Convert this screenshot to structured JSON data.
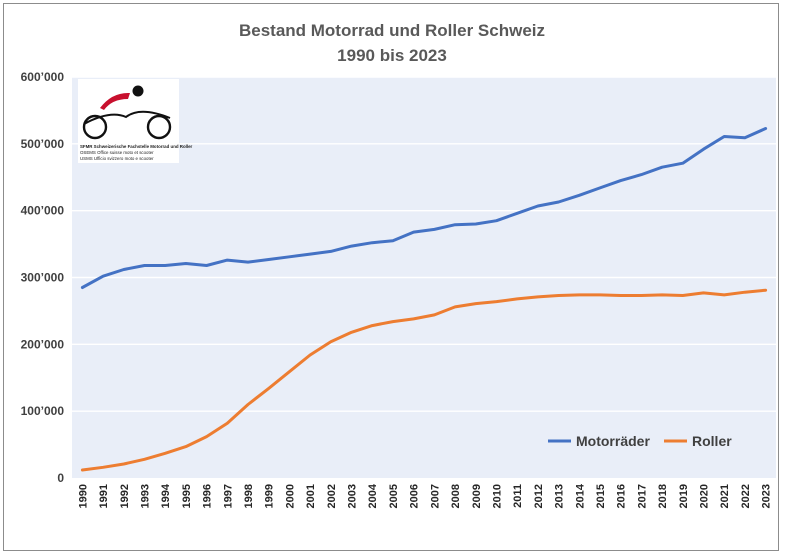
{
  "chart_data": {
    "type": "line",
    "title_line1": "Bestand Motorrad und Roller Schweiz",
    "title_line2": "1990 bis 2023",
    "xlabel": "",
    "ylabel": "",
    "ylim": [
      0,
      600000
    ],
    "yticks": [
      0,
      100000,
      200000,
      300000,
      400000,
      500000,
      600000
    ],
    "ytick_labels": [
      "0",
      "100’000",
      "200’000",
      "300’000",
      "400’000",
      "500’000",
      "600’000"
    ],
    "grid": true,
    "legend_position": "bottom-right",
    "x": [
      "1990",
      "1991",
      "1992",
      "1993",
      "1994",
      "1995",
      "1996",
      "1997",
      "1998",
      "1999",
      "2000",
      "2001",
      "2002",
      "2003",
      "2004",
      "2005",
      "2006",
      "2007",
      "2008",
      "2009",
      "2010",
      "2011",
      "2012",
      "2013",
      "2014",
      "2015",
      "2016",
      "2017",
      "2018",
      "2019",
      "2020",
      "2021",
      "2022",
      "2023"
    ],
    "series": [
      {
        "name": "Motorräder",
        "color": "#4472c4",
        "values": [
          285000,
          302000,
          312000,
          318000,
          318000,
          321000,
          318000,
          326000,
          323000,
          327000,
          331000,
          335000,
          339000,
          347000,
          352000,
          355000,
          368000,
          372000,
          379000,
          380000,
          385000,
          396000,
          407000,
          413000,
          423000,
          434000,
          445000,
          454000,
          465000,
          471000,
          492000,
          511000,
          509000,
          523000
        ]
      },
      {
        "name": "Roller",
        "color": "#ed7d31",
        "values": [
          12000,
          16000,
          21000,
          28000,
          37000,
          47000,
          62000,
          82000,
          110000,
          134000,
          159000,
          184000,
          204000,
          218000,
          228000,
          234000,
          238000,
          244000,
          256000,
          261000,
          264000,
          268000,
          271000,
          273000,
          274000,
          274000,
          273000,
          273000,
          274000,
          273000,
          277000,
          274000,
          278000,
          281000
        ]
      }
    ]
  },
  "logo": {
    "line1": "SFMR  Schweizerische Fachstelle Motorrad und Roller",
    "line2": "OSEMS  Office suisse moto et scooter",
    "line3": "USMS  Ufficio svizzero moto e scooter"
  },
  "colors": {
    "plot_background": "#e9eef8",
    "grid": "#ffffff",
    "logo_red": "#c8102e"
  }
}
